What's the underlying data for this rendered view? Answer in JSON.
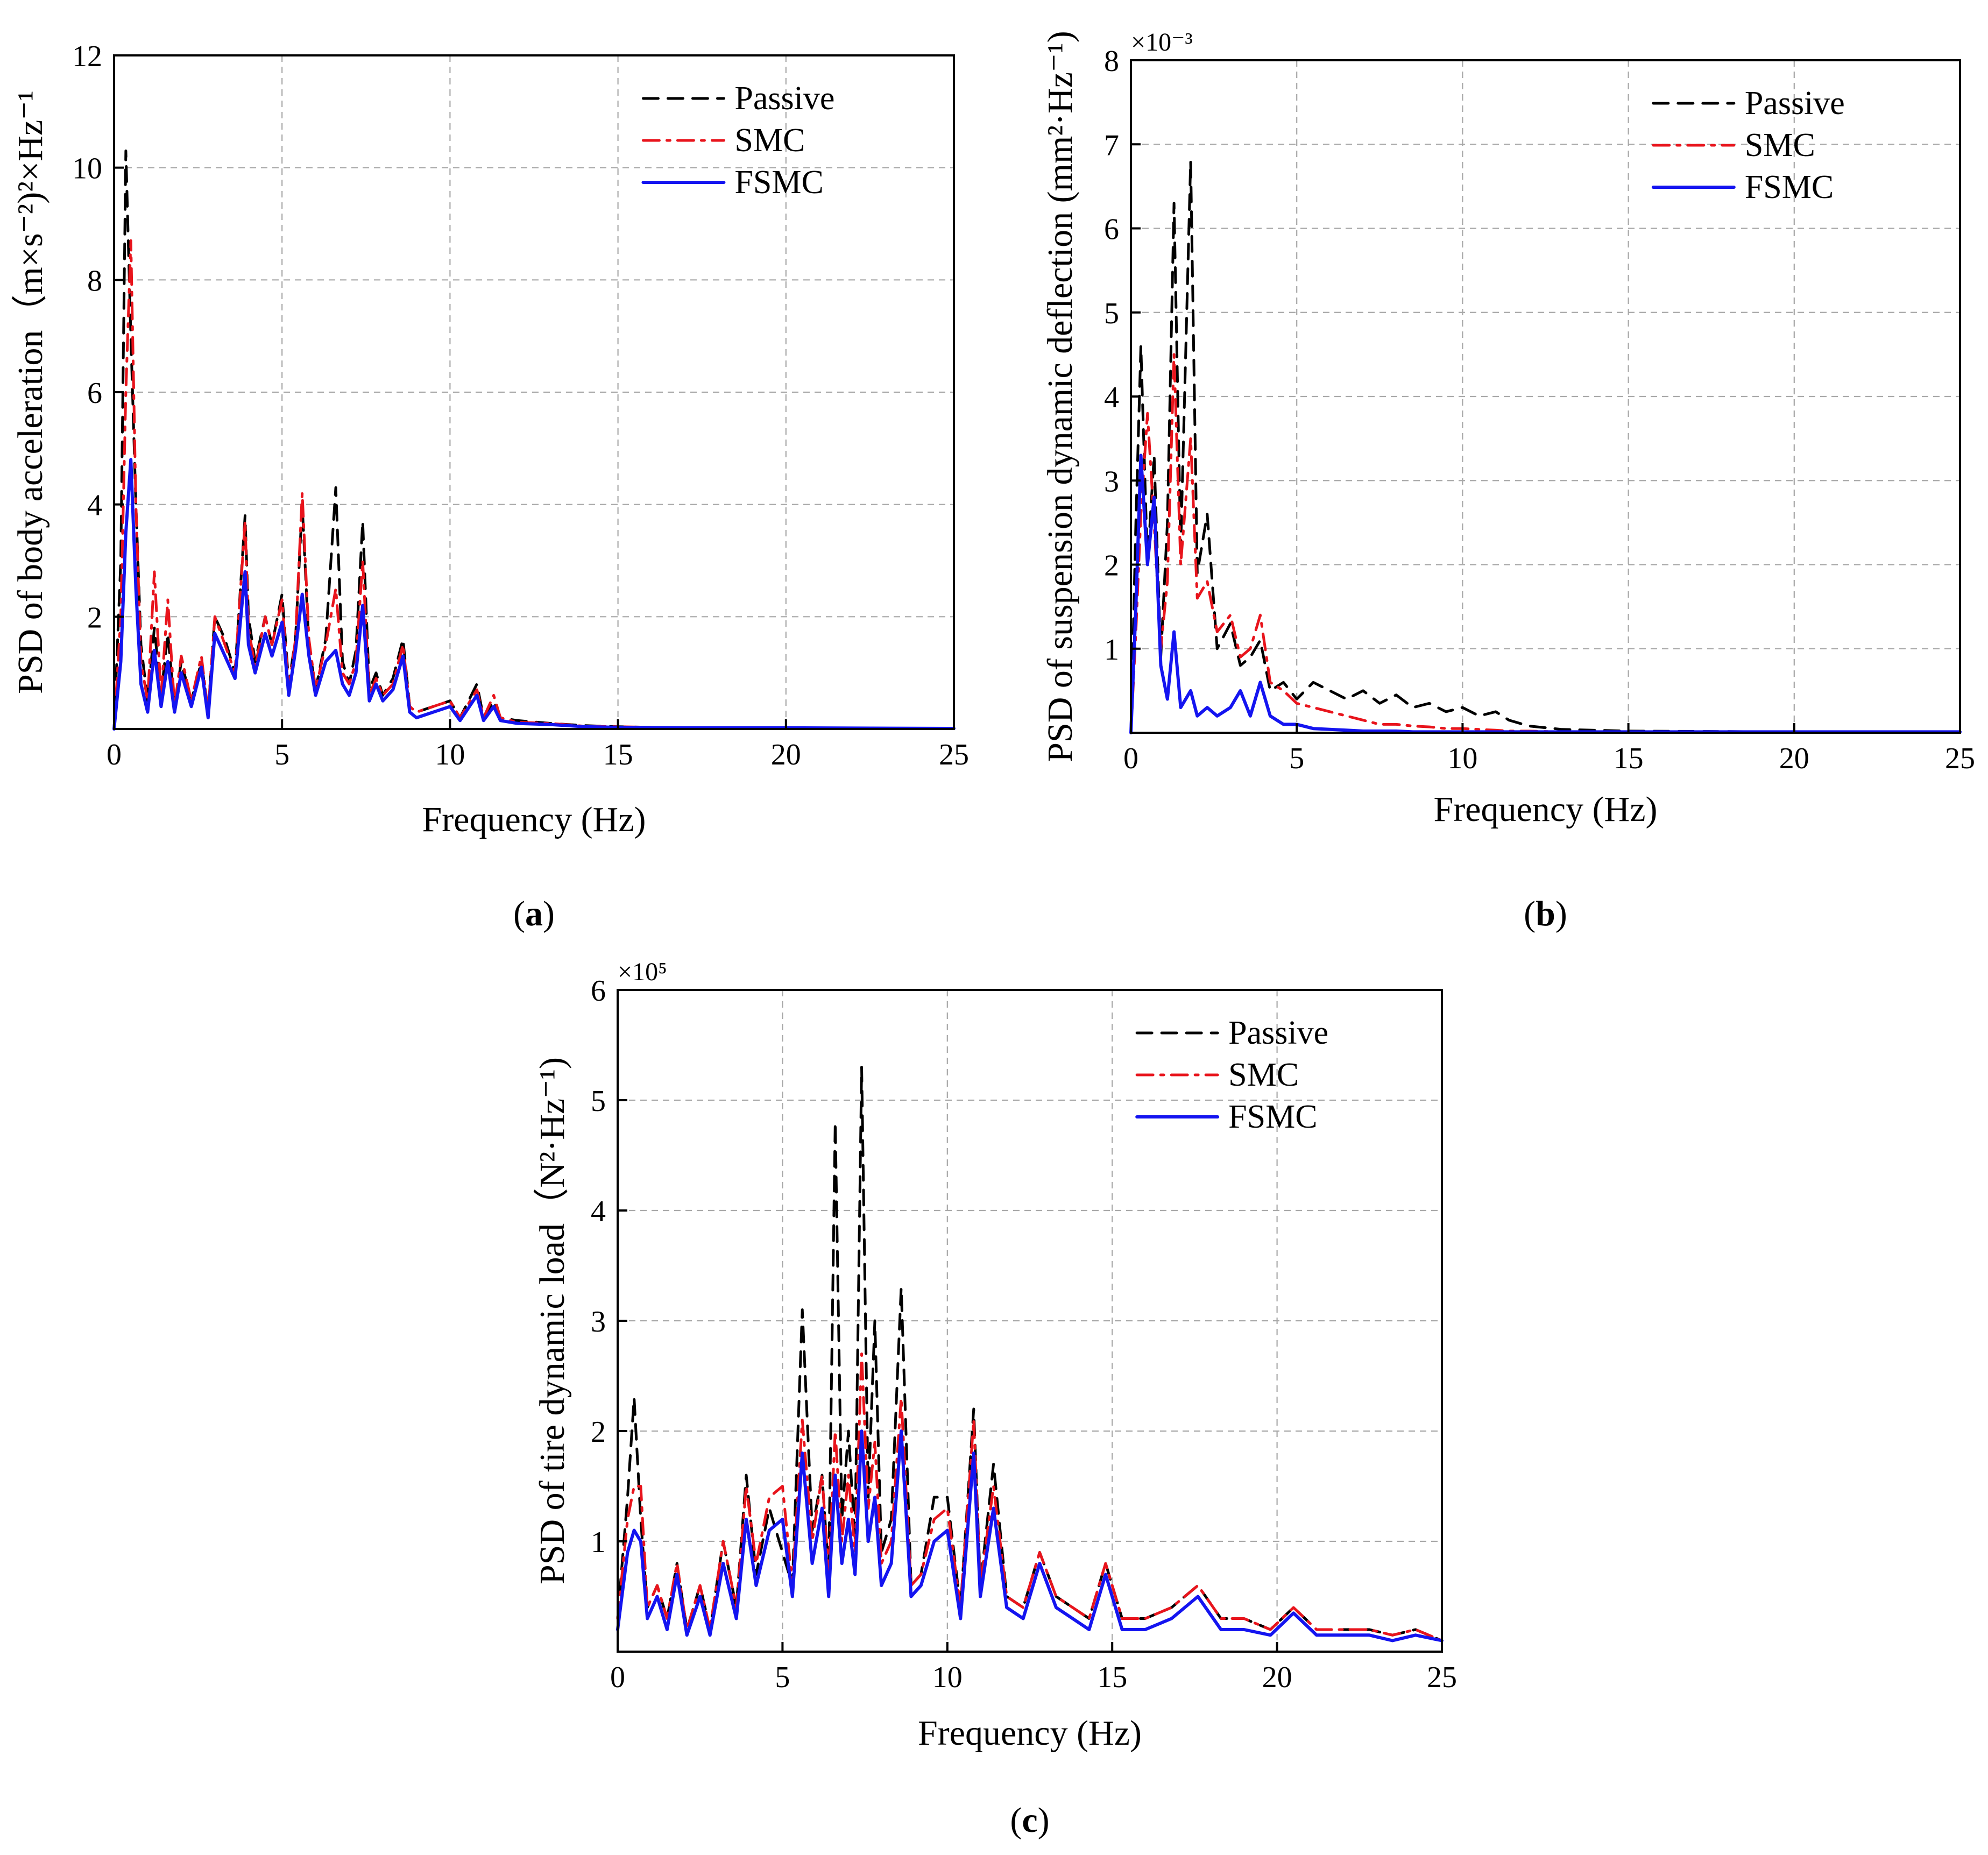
{
  "chart_data": [
    {
      "type": "line",
      "id": "a",
      "panel_label": "(a)",
      "panel_letter": "a",
      "xlabel": "Frequency (Hz)",
      "ylabel": "PSD of body acceleration（m×s⁻²)²×Hz⁻¹",
      "exponent_label": "",
      "xlim": [
        0,
        25
      ],
      "ylim": [
        0,
        12
      ],
      "xticks": [
        0,
        5,
        10,
        15,
        20,
        25
      ],
      "yticks": [
        2,
        4,
        6,
        8,
        10,
        12
      ],
      "grid": true,
      "legend_position": "top-right",
      "series": [
        {
          "name": "Passive",
          "color": "#000000",
          "style": "dashed",
          "x": [
            0,
            0.2,
            0.35,
            0.5,
            0.65,
            0.8,
            1.0,
            1.2,
            1.4,
            1.6,
            1.8,
            2.0,
            2.3,
            2.6,
            2.8,
            3.0,
            3.3,
            3.6,
            3.9,
            4.0,
            4.2,
            4.5,
            4.7,
            5.0,
            5.2,
            5.4,
            5.6,
            5.8,
            6.0,
            6.3,
            6.6,
            6.8,
            7.0,
            7.2,
            7.4,
            7.6,
            7.8,
            8.0,
            8.3,
            8.6,
            8.8,
            9.0,
            9.5,
            10.0,
            10.3,
            10.8,
            11.0,
            11.3,
            11.5,
            12.0,
            13.0,
            14.0,
            15.0,
            17.0,
            20.0,
            25.0
          ],
          "y": [
            0,
            3.0,
            10.3,
            7.0,
            4.0,
            1.5,
            0.5,
            1.8,
            0.6,
            1.7,
            0.4,
            1.2,
            0.5,
            1.2,
            0.3,
            2.0,
            1.6,
            1.0,
            3.8,
            2.0,
            1.2,
            2.0,
            1.5,
            2.4,
            0.8,
            1.6,
            4.0,
            1.5,
            0.7,
            1.6,
            4.3,
            1.2,
            0.8,
            1.4,
            3.7,
            0.7,
            1.0,
            0.6,
            0.9,
            1.6,
            0.4,
            0.3,
            0.4,
            0.5,
            0.2,
            0.8,
            0.2,
            0.5,
            0.2,
            0.15,
            0.1,
            0.06,
            0.04,
            0.02,
            0.02,
            0.01
          ]
        },
        {
          "name": "SMC",
          "color": "#e8141c",
          "style": "dashdot",
          "x": [
            0,
            0.2,
            0.35,
            0.5,
            0.65,
            0.8,
            1.0,
            1.2,
            1.4,
            1.6,
            1.8,
            2.0,
            2.3,
            2.6,
            2.8,
            3.0,
            3.3,
            3.6,
            3.9,
            4.0,
            4.2,
            4.5,
            4.7,
            5.0,
            5.2,
            5.4,
            5.6,
            5.8,
            6.0,
            6.3,
            6.6,
            6.8,
            7.0,
            7.2,
            7.4,
            7.6,
            7.8,
            8.0,
            8.3,
            8.6,
            8.8,
            9.0,
            9.5,
            10.0,
            10.3,
            10.8,
            11.0,
            11.3,
            11.5,
            12.0,
            13.0,
            14.0,
            15.0,
            17.0,
            20.0,
            25.0
          ],
          "y": [
            0,
            2.0,
            6.0,
            8.7,
            4.0,
            1.2,
            0.5,
            2.8,
            0.6,
            2.3,
            0.4,
            1.3,
            0.5,
            1.3,
            0.3,
            2.0,
            1.5,
            1.0,
            3.7,
            1.8,
            1.1,
            2.0,
            1.5,
            2.3,
            0.7,
            1.6,
            4.2,
            1.6,
            0.7,
            1.5,
            2.5,
            1.0,
            0.8,
            1.2,
            3.0,
            0.6,
            0.9,
            0.6,
            0.8,
            1.5,
            0.4,
            0.3,
            0.4,
            0.5,
            0.2,
            0.7,
            0.2,
            0.6,
            0.2,
            0.12,
            0.1,
            0.05,
            0.04,
            0.02,
            0.02,
            0.01
          ]
        },
        {
          "name": "FSMC",
          "color": "#1414f0",
          "style": "solid",
          "x": [
            0,
            0.2,
            0.35,
            0.5,
            0.65,
            0.8,
            1.0,
            1.2,
            1.4,
            1.6,
            1.8,
            2.0,
            2.3,
            2.6,
            2.8,
            3.0,
            3.3,
            3.6,
            3.9,
            4.0,
            4.2,
            4.5,
            4.7,
            5.0,
            5.2,
            5.4,
            5.6,
            5.8,
            6.0,
            6.3,
            6.6,
            6.8,
            7.0,
            7.2,
            7.4,
            7.6,
            7.8,
            8.0,
            8.3,
            8.6,
            8.8,
            9.0,
            9.5,
            10.0,
            10.3,
            10.8,
            11.0,
            11.3,
            11.5,
            12.0,
            13.0,
            14.0,
            15.0,
            17.0,
            20.0,
            25.0
          ],
          "y": [
            0,
            1.2,
            3.5,
            4.8,
            2.5,
            0.8,
            0.3,
            1.4,
            0.4,
            1.2,
            0.3,
            1.0,
            0.4,
            1.1,
            0.2,
            1.7,
            1.3,
            0.9,
            2.8,
            1.5,
            1.0,
            1.7,
            1.3,
            1.9,
            0.6,
            1.4,
            2.4,
            1.3,
            0.6,
            1.2,
            1.4,
            0.8,
            0.6,
            1.0,
            2.2,
            0.5,
            0.8,
            0.5,
            0.7,
            1.3,
            0.3,
            0.2,
            0.3,
            0.4,
            0.15,
            0.6,
            0.15,
            0.4,
            0.15,
            0.1,
            0.08,
            0.04,
            0.03,
            0.02,
            0.02,
            0.01
          ]
        }
      ]
    },
    {
      "type": "line",
      "id": "b",
      "panel_label": "(b)",
      "panel_letter": "b",
      "xlabel": "Frequency (Hz)",
      "ylabel": "PSD of suspension dynamic deflection (mm²·Hz⁻¹)",
      "exponent_label": "×10⁻³",
      "xlim": [
        0,
        25
      ],
      "ylim": [
        0,
        8
      ],
      "xticks": [
        0,
        5,
        10,
        15,
        20,
        25
      ],
      "yticks": [
        1,
        2,
        3,
        4,
        5,
        6,
        7,
        8
      ],
      "grid": true,
      "legend_position": "top-right",
      "series": [
        {
          "name": "Passive",
          "color": "#000000",
          "style": "dashed",
          "x": [
            0,
            0.15,
            0.3,
            0.5,
            0.7,
            0.9,
            1.1,
            1.3,
            1.5,
            1.8,
            2.0,
            2.3,
            2.6,
            3.0,
            3.3,
            3.6,
            3.9,
            4.2,
            4.6,
            5.0,
            5.5,
            6.0,
            6.5,
            7.0,
            7.5,
            8.0,
            8.5,
            9.0,
            9.5,
            10.0,
            10.5,
            11.0,
            11.4,
            12.0,
            13.0,
            15.0,
            20.0,
            25.0
          ],
          "y": [
            0,
            2.5,
            4.6,
            2.0,
            3.3,
            0.9,
            2.5,
            6.3,
            2.2,
            6.8,
            1.9,
            2.6,
            1.0,
            1.3,
            0.8,
            0.9,
            1.1,
            0.5,
            0.6,
            0.4,
            0.6,
            0.5,
            0.4,
            0.5,
            0.35,
            0.45,
            0.3,
            0.35,
            0.25,
            0.3,
            0.2,
            0.25,
            0.15,
            0.08,
            0.04,
            0.02,
            0.01,
            0.01
          ]
        },
        {
          "name": "SMC",
          "color": "#e8141c",
          "style": "dashdot",
          "x": [
            0,
            0.15,
            0.3,
            0.5,
            0.7,
            0.9,
            1.1,
            1.3,
            1.5,
            1.8,
            2.0,
            2.3,
            2.6,
            3.0,
            3.3,
            3.6,
            3.9,
            4.2,
            4.6,
            5.0,
            5.5,
            6.0,
            6.5,
            7.0,
            7.5,
            8.0,
            8.5,
            9.0,
            9.5,
            10.0,
            10.5,
            11.0,
            11.4,
            12.0,
            13.0,
            15.0,
            20.0,
            25.0
          ],
          "y": [
            0,
            1.2,
            2.6,
            3.8,
            2.5,
            1.0,
            1.8,
            4.5,
            2.0,
            3.5,
            1.6,
            1.8,
            1.2,
            1.4,
            0.9,
            1.0,
            1.4,
            0.6,
            0.5,
            0.35,
            0.3,
            0.25,
            0.2,
            0.15,
            0.1,
            0.1,
            0.08,
            0.07,
            0.05,
            0.05,
            0.04,
            0.03,
            0.02,
            0.02,
            0.01,
            0.01,
            0.01,
            0.01
          ]
        },
        {
          "name": "FSMC",
          "color": "#1414f0",
          "style": "solid",
          "x": [
            0,
            0.15,
            0.3,
            0.5,
            0.7,
            0.9,
            1.1,
            1.3,
            1.5,
            1.8,
            2.0,
            2.3,
            2.6,
            3.0,
            3.3,
            3.6,
            3.9,
            4.2,
            4.6,
            5.0,
            5.5,
            6.0,
            6.5,
            7.0,
            7.5,
            8.0,
            8.5,
            9.0,
            9.5,
            10.0,
            10.5,
            11.0,
            11.4,
            12.0,
            13.0,
            15.0,
            20.0,
            25.0
          ],
          "y": [
            0,
            1.5,
            3.3,
            2.0,
            2.8,
            0.8,
            0.4,
            1.2,
            0.3,
            0.5,
            0.2,
            0.3,
            0.2,
            0.3,
            0.5,
            0.2,
            0.6,
            0.2,
            0.1,
            0.1,
            0.05,
            0.04,
            0.03,
            0.02,
            0.02,
            0.02,
            0.01,
            0.01,
            0.01,
            0.01,
            0.01,
            0.01,
            0.01,
            0.01,
            0.01,
            0.01,
            0.01,
            0.01
          ]
        }
      ]
    },
    {
      "type": "line",
      "id": "c",
      "panel_label": "(c)",
      "panel_letter": "c",
      "xlabel": "Frequency (Hz)",
      "ylabel": "PSD of tire dynamic load（N²·Hz⁻¹)",
      "exponent_label": "×10⁵",
      "xlim": [
        0,
        25
      ],
      "ylim": [
        0,
        6
      ],
      "xticks": [
        0,
        5,
        10,
        15,
        20,
        25
      ],
      "yticks": [
        1,
        2,
        3,
        4,
        5,
        6
      ],
      "grid": true,
      "legend_position": "top-right",
      "series": [
        {
          "name": "Passive",
          "color": "#000000",
          "style": "dashed",
          "x": [
            0,
            0.3,
            0.5,
            0.7,
            0.9,
            1.2,
            1.5,
            1.8,
            2.1,
            2.5,
            2.8,
            3.2,
            3.6,
            3.9,
            4.2,
            4.6,
            5.0,
            5.3,
            5.6,
            5.9,
            6.2,
            6.4,
            6.6,
            6.8,
            7.0,
            7.2,
            7.4,
            7.6,
            7.8,
            8.0,
            8.3,
            8.6,
            8.9,
            9.2,
            9.6,
            10.0,
            10.4,
            10.8,
            11.0,
            11.4,
            11.8,
            12.3,
            12.8,
            13.3,
            13.8,
            14.3,
            14.8,
            15.3,
            16.0,
            16.8,
            17.6,
            18.3,
            19.0,
            19.8,
            20.5,
            21.2,
            22.0,
            22.8,
            23.5,
            24.2,
            25.0
          ],
          "y": [
            0.3,
            1.4,
            2.3,
            1.2,
            0.4,
            0.6,
            0.3,
            0.8,
            0.2,
            0.6,
            0.2,
            1.0,
            0.4,
            1.6,
            0.7,
            1.3,
            0.9,
            0.6,
            3.1,
            1.1,
            1.6,
            0.7,
            4.8,
            1.2,
            2.0,
            1.0,
            5.3,
            1.4,
            3.0,
            0.9,
            1.2,
            3.3,
            0.6,
            0.7,
            1.4,
            1.4,
            0.4,
            2.2,
            0.6,
            1.7,
            0.5,
            0.4,
            0.9,
            0.5,
            0.4,
            0.3,
            0.8,
            0.3,
            0.3,
            0.4,
            0.6,
            0.3,
            0.3,
            0.2,
            0.4,
            0.2,
            0.2,
            0.2,
            0.15,
            0.2,
            0.1
          ]
        },
        {
          "name": "SMC",
          "color": "#e8141c",
          "style": "dashdot",
          "x": [
            0,
            0.3,
            0.5,
            0.7,
            0.9,
            1.2,
            1.5,
            1.8,
            2.1,
            2.5,
            2.8,
            3.2,
            3.6,
            3.9,
            4.2,
            4.6,
            5.0,
            5.3,
            5.6,
            5.9,
            6.2,
            6.4,
            6.6,
            6.8,
            7.0,
            7.2,
            7.4,
            7.6,
            7.8,
            8.0,
            8.3,
            8.6,
            8.9,
            9.2,
            9.6,
            10.0,
            10.4,
            10.8,
            11.0,
            11.4,
            11.8,
            12.3,
            12.8,
            13.3,
            13.8,
            14.3,
            14.8,
            15.3,
            16.0,
            16.8,
            17.6,
            18.3,
            19.0,
            19.8,
            20.5,
            21.2,
            22.0,
            22.8,
            23.5,
            24.2,
            25.0
          ],
          "y": [
            0.3,
            1.2,
            1.5,
            1.5,
            0.4,
            0.6,
            0.3,
            0.8,
            0.2,
            0.6,
            0.2,
            1.0,
            0.4,
            1.5,
            0.8,
            1.4,
            1.5,
            0.6,
            2.1,
            1.0,
            1.6,
            0.7,
            2.0,
            1.0,
            1.6,
            0.9,
            2.7,
            1.3,
            1.9,
            0.8,
            1.0,
            2.3,
            0.6,
            0.7,
            1.2,
            1.3,
            0.4,
            2.1,
            0.6,
            1.5,
            0.5,
            0.4,
            0.9,
            0.5,
            0.4,
            0.3,
            0.8,
            0.3,
            0.3,
            0.4,
            0.6,
            0.3,
            0.3,
            0.2,
            0.4,
            0.2,
            0.2,
            0.2,
            0.15,
            0.2,
            0.1
          ]
        },
        {
          "name": "FSMC",
          "color": "#1414f0",
          "style": "solid",
          "x": [
            0,
            0.3,
            0.5,
            0.7,
            0.9,
            1.2,
            1.5,
            1.8,
            2.1,
            2.5,
            2.8,
            3.2,
            3.6,
            3.9,
            4.2,
            4.6,
            5.0,
            5.3,
            5.6,
            5.9,
            6.2,
            6.4,
            6.6,
            6.8,
            7.0,
            7.2,
            7.4,
            7.6,
            7.8,
            8.0,
            8.3,
            8.6,
            8.9,
            9.2,
            9.6,
            10.0,
            10.4,
            10.8,
            11.0,
            11.4,
            11.8,
            12.3,
            12.8,
            13.3,
            13.8,
            14.3,
            14.8,
            15.3,
            16.0,
            16.8,
            17.6,
            18.3,
            19.0,
            19.8,
            20.5,
            21.2,
            22.0,
            22.8,
            23.5,
            24.2,
            25.0
          ],
          "y": [
            0.2,
            0.9,
            1.1,
            1.0,
            0.3,
            0.5,
            0.2,
            0.7,
            0.15,
            0.5,
            0.15,
            0.8,
            0.3,
            1.2,
            0.6,
            1.1,
            1.2,
            0.5,
            1.8,
            0.8,
            1.3,
            0.5,
            1.6,
            0.8,
            1.2,
            0.7,
            2.0,
            1.0,
            1.4,
            0.6,
            0.8,
            2.0,
            0.5,
            0.6,
            1.0,
            1.1,
            0.3,
            1.8,
            0.5,
            1.3,
            0.4,
            0.3,
            0.8,
            0.4,
            0.3,
            0.2,
            0.7,
            0.2,
            0.2,
            0.3,
            0.5,
            0.2,
            0.2,
            0.15,
            0.35,
            0.15,
            0.15,
            0.15,
            0.1,
            0.15,
            0.1
          ]
        }
      ]
    }
  ]
}
